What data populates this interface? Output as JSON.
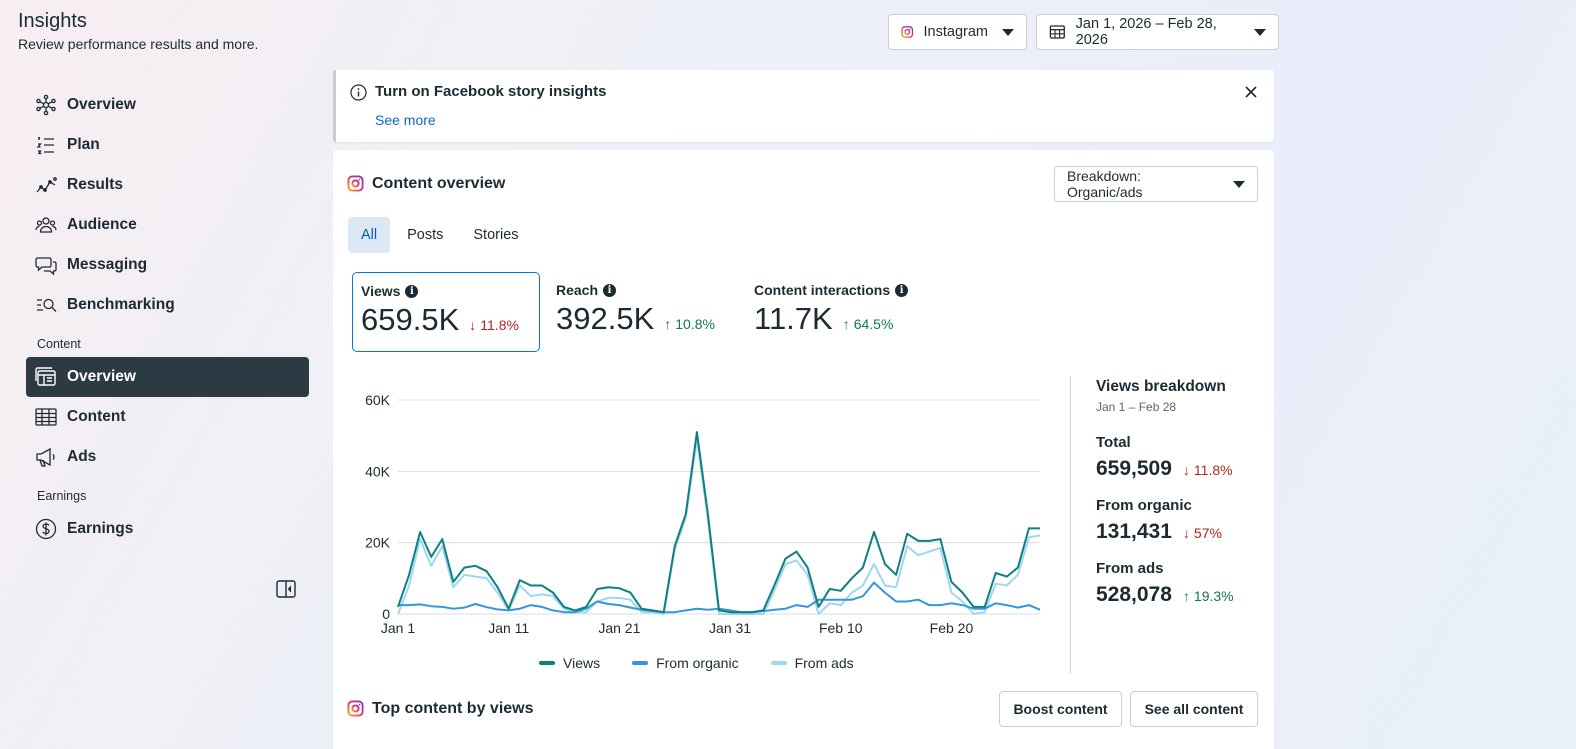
{
  "header": {
    "title": "Insights",
    "subtitle": "Review performance results and more."
  },
  "top_controls": {
    "platform": "Instagram",
    "date_range": "Jan 1, 2026 – Feb 28, 2026"
  },
  "sidebar": {
    "items": [
      {
        "label": "Overview",
        "icon": "overview-network-icon"
      },
      {
        "label": "Plan",
        "icon": "plan-list-icon"
      },
      {
        "label": "Results",
        "icon": "results-trend-icon"
      },
      {
        "label": "Audience",
        "icon": "audience-people-icon"
      },
      {
        "label": "Messaging",
        "icon": "messaging-bubbles-icon"
      },
      {
        "label": "Benchmarking",
        "icon": "benchmarking-search-icon"
      }
    ],
    "content_section": "Content",
    "content_items": [
      {
        "label": "Overview",
        "icon": "content-overview-icon",
        "active": true
      },
      {
        "label": "Content",
        "icon": "table-grid-icon"
      },
      {
        "label": "Ads",
        "icon": "megaphone-icon"
      }
    ],
    "earnings_section": "Earnings",
    "earnings_items": [
      {
        "label": "Earnings",
        "icon": "dollar-circle-icon"
      }
    ]
  },
  "banner": {
    "title": "Turn on Facebook story insights",
    "link": "See more"
  },
  "content_overview": {
    "title": "Content overview",
    "breakdown_label": "Breakdown: Organic/ads",
    "tabs": [
      "All",
      "Posts",
      "Stories"
    ],
    "active_tab": "All",
    "metrics": [
      {
        "label": "Views",
        "value": "659.5K",
        "delta": "11.8%",
        "direction": "down"
      },
      {
        "label": "Reach",
        "value": "392.5K",
        "delta": "10.8%",
        "direction": "up"
      },
      {
        "label": "Content interactions",
        "value": "11.7K",
        "delta": "64.5%",
        "direction": "up"
      }
    ]
  },
  "views_breakdown": {
    "title": "Views breakdown",
    "range": "Jan 1 – Feb 28",
    "total_label": "Total",
    "total_value": "659,509",
    "total_delta": "11.8%",
    "organic_label": "From organic",
    "organic_value": "131,431",
    "organic_delta": "57%",
    "ads_label": "From ads",
    "ads_value": "528,078",
    "ads_delta": "19.3%"
  },
  "top_content": {
    "title": "Top content by views",
    "boost_label": "Boost content",
    "see_all_label": "See all content"
  },
  "colors": {
    "views": "#0f7f80",
    "organic": "#3597d9",
    "ads": "#9ed7f2",
    "down": "#b3261e",
    "up": "#0f7a4e"
  },
  "chart_data": {
    "type": "line",
    "title": "",
    "xlabel": "",
    "ylabel": "",
    "ylim": [
      0,
      60000
    ],
    "yticks": [
      "0",
      "20K",
      "40K",
      "60K"
    ],
    "ytick_values": [
      0,
      20000,
      40000,
      60000
    ],
    "xticks": [
      "Jan 1",
      "Jan 11",
      "Jan 21",
      "Jan 31",
      "Feb 10",
      "Feb 20"
    ],
    "xtick_days": [
      1,
      11,
      21,
      31,
      41,
      51
    ],
    "x_days": [
      1,
      2,
      3,
      4,
      5,
      6,
      7,
      8,
      9,
      10,
      11,
      12,
      13,
      14,
      15,
      16,
      17,
      18,
      19,
      20,
      21,
      22,
      23,
      24,
      25,
      26,
      27,
      28,
      29,
      30,
      31,
      32,
      33,
      34,
      35,
      36,
      37,
      38,
      39,
      40,
      41,
      42,
      43,
      44,
      45,
      46,
      47,
      48,
      49,
      50,
      51,
      52,
      53,
      54,
      55,
      56,
      57,
      58,
      59
    ],
    "series": [
      {
        "name": "Views",
        "values": [
          2000,
          11000,
          23000,
          16000,
          21000,
          9000,
          13000,
          13500,
          12000,
          7500,
          1500,
          9500,
          8000,
          8000,
          6000,
          2000,
          1000,
          2000,
          7000,
          7500,
          7200,
          6000,
          1500,
          1000,
          500,
          19000,
          28000,
          51000,
          28000,
          1000,
          500,
          500,
          500,
          1000,
          8000,
          15500,
          17500,
          13000,
          2000,
          7000,
          6500,
          10000,
          13000,
          23000,
          14000,
          11000,
          22500,
          20500,
          20500,
          21000,
          9000,
          6000,
          2000,
          2000,
          11500,
          10500,
          13000,
          24000,
          24000
        ]
      },
      {
        "name": "From organic",
        "values": [
          2500,
          2500,
          2700,
          2200,
          2000,
          1500,
          1800,
          2800,
          1900,
          1300,
          1000,
          1500,
          2500,
          2000,
          1000,
          500,
          500,
          1500,
          3500,
          2800,
          2500,
          1800,
          1200,
          800,
          500,
          500,
          1000,
          1500,
          1200,
          1500,
          1000,
          500,
          500,
          800,
          1200,
          1500,
          2500,
          2000,
          4000,
          4000,
          4000,
          4000,
          5000,
          8800,
          6000,
          3500,
          3500,
          4000,
          2500,
          2500,
          3000,
          2500,
          1500,
          1500,
          3000,
          2500,
          1800,
          2500,
          1200
        ]
      },
      {
        "name": "From ads",
        "values": [
          0,
          8000,
          21000,
          13500,
          19000,
          7500,
          11000,
          10500,
          10000,
          6000,
          1000,
          8000,
          5000,
          5500,
          5000,
          1500,
          500,
          500,
          3500,
          4500,
          4500,
          4000,
          500,
          500,
          0,
          18000,
          27000,
          49000,
          26500,
          0,
          0,
          0,
          0,
          0,
          6500,
          14000,
          15000,
          11000,
          0,
          3000,
          2500,
          6000,
          8000,
          14000,
          8000,
          7500,
          19000,
          16500,
          17500,
          18500,
          6000,
          3500,
          0,
          500,
          8500,
          8000,
          11000,
          21500,
          22000
        ]
      }
    ]
  }
}
